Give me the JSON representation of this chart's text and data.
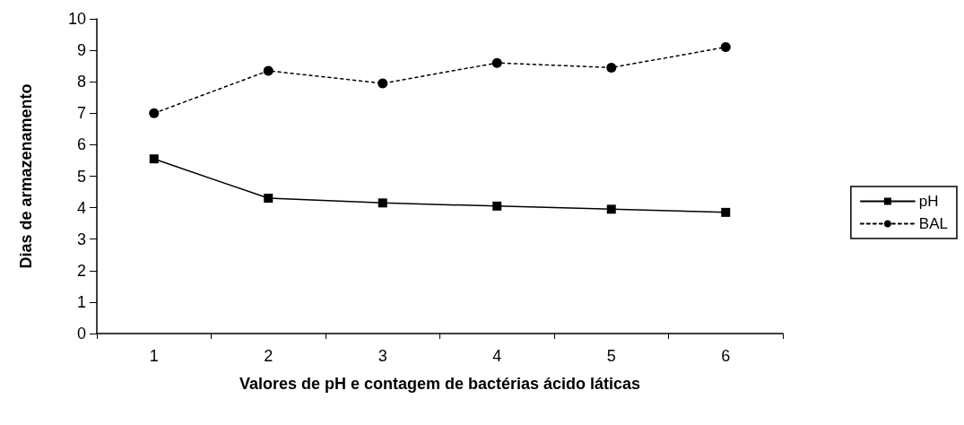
{
  "chart_data": {
    "type": "line",
    "xlabel": "Valores de pH e contagem de bactérias ácido láticas",
    "ylabel": "Dias de armazenamento",
    "categories": [
      "1",
      "2",
      "3",
      "4",
      "5",
      "6"
    ],
    "series": [
      {
        "name": "pH",
        "color": "#000000",
        "marker": "square",
        "line_style": "solid",
        "values": [
          5.55,
          4.3,
          4.15,
          4.05,
          3.95,
          3.85
        ]
      },
      {
        "name": "BAL",
        "color": "#000000",
        "marker": "circle",
        "line_style": "dashed",
        "values": [
          7.0,
          8.35,
          7.95,
          8.6,
          8.45,
          9.1
        ]
      }
    ],
    "ylim": [
      0,
      10
    ],
    "yticks": [
      0,
      1,
      2,
      3,
      4,
      5,
      6,
      7,
      8,
      9,
      10
    ],
    "grid": false,
    "legend": "right"
  }
}
